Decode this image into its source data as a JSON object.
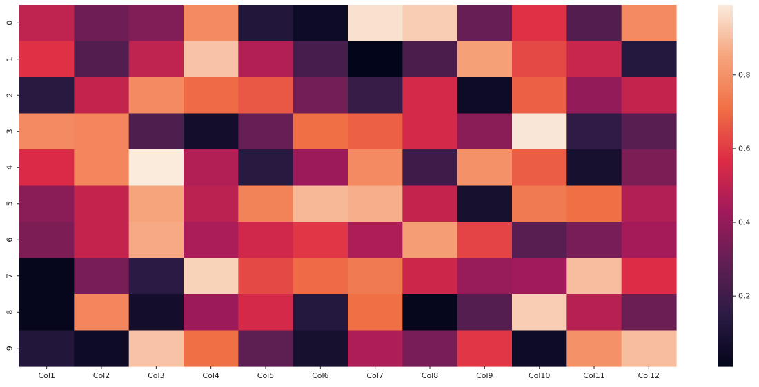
{
  "chart_data": {
    "type": "heatmap",
    "title": "",
    "xlabel": "",
    "ylabel": "",
    "x_categories": [
      "Col1",
      "Col2",
      "Col3",
      "Col4",
      "Col5",
      "Col6",
      "Col7",
      "Col8",
      "Col9",
      "Col10",
      "Col11",
      "Col12"
    ],
    "y_categories": [
      "0",
      "1",
      "2",
      "3",
      "4",
      "5",
      "6",
      "7",
      "8",
      "9"
    ],
    "values": [
      [
        0.5,
        0.32,
        0.36,
        0.78,
        0.12,
        0.05,
        0.97,
        0.93,
        0.3,
        0.58,
        0.25,
        0.78
      ],
      [
        0.58,
        0.25,
        0.5,
        0.91,
        0.47,
        0.22,
        0.01,
        0.23,
        0.84,
        0.63,
        0.52,
        0.13
      ],
      [
        0.14,
        0.51,
        0.78,
        0.7,
        0.66,
        0.33,
        0.18,
        0.55,
        0.05,
        0.68,
        0.4,
        0.51
      ],
      [
        0.78,
        0.77,
        0.24,
        0.07,
        0.3,
        0.71,
        0.68,
        0.55,
        0.38,
        0.98,
        0.16,
        0.27
      ],
      [
        0.56,
        0.77,
        0.99,
        0.47,
        0.14,
        0.42,
        0.78,
        0.2,
        0.8,
        0.67,
        0.08,
        0.35
      ],
      [
        0.38,
        0.51,
        0.85,
        0.49,
        0.76,
        0.89,
        0.87,
        0.51,
        0.08,
        0.74,
        0.71,
        0.47
      ],
      [
        0.35,
        0.51,
        0.86,
        0.45,
        0.54,
        0.59,
        0.46,
        0.83,
        0.62,
        0.27,
        0.34,
        0.44
      ],
      [
        0.02,
        0.34,
        0.15,
        0.94,
        0.63,
        0.7,
        0.74,
        0.53,
        0.41,
        0.43,
        0.9,
        0.57
      ],
      [
        0.02,
        0.77,
        0.07,
        0.42,
        0.55,
        0.13,
        0.71,
        0.02,
        0.26,
        0.93,
        0.48,
        0.31
      ],
      [
        0.12,
        0.05,
        0.91,
        0.71,
        0.28,
        0.08,
        0.46,
        0.34,
        0.59,
        0.05,
        0.8,
        0.9
      ]
    ],
    "vmin": 0.01,
    "vmax": 0.99,
    "colormap": "rocket",
    "colormap_stops": [
      "#03051a",
      "#2b1b44",
      "#611f53",
      "#a11a5b",
      "#dd2c45",
      "#f07045",
      "#f6a47c",
      "#faebdd"
    ],
    "colorbar_ticks": [
      0.2,
      0.4,
      0.6,
      0.8
    ],
    "grid": false,
    "colorbar_placement": "right"
  }
}
